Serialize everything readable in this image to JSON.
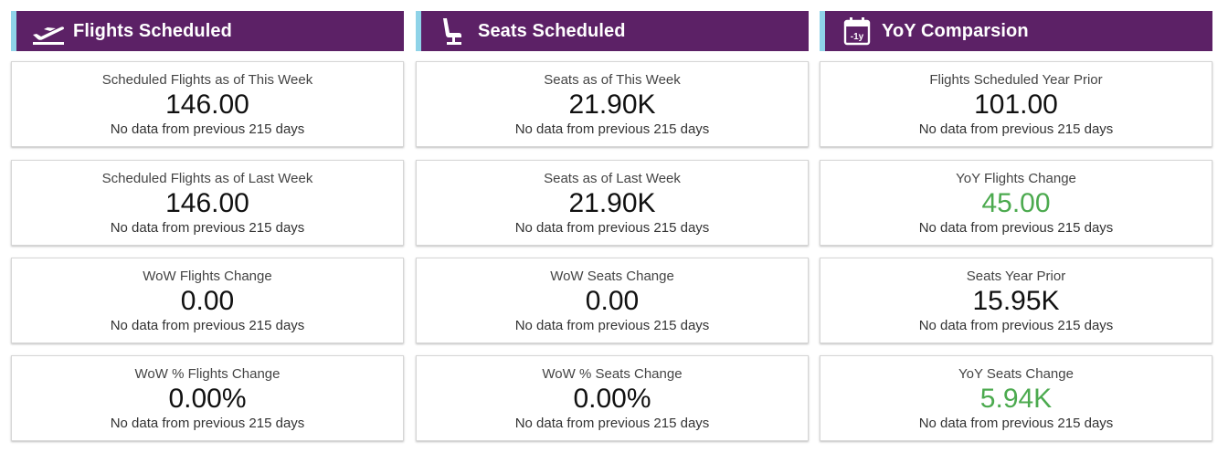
{
  "colors": {
    "header_bg": "#5c2166",
    "header_accent": "#8fd3e8",
    "positive_value": "#4caa4f"
  },
  "columns": [
    {
      "title": "Flights Scheduled",
      "icon": "airplane-takeoff-icon",
      "cards": [
        {
          "label": "Scheduled Flights as of This Week",
          "value": "146.00",
          "note": "No data from previous 215 days",
          "positive": false
        },
        {
          "label": "Scheduled Flights as of Last Week",
          "value": "146.00",
          "note": "No data from previous 215 days",
          "positive": false
        },
        {
          "label": "WoW Flights Change",
          "value": "0.00",
          "note": "No data from previous 215 days",
          "positive": false
        },
        {
          "label": "WoW % Flights Change",
          "value": "0.00%",
          "note": "No data from previous 215 days",
          "positive": false
        }
      ]
    },
    {
      "title": "Seats Scheduled",
      "icon": "seat-icon",
      "cards": [
        {
          "label": "Seats as of This Week",
          "value": "21.90K",
          "note": "No data from previous 215 days",
          "positive": false
        },
        {
          "label": "Seats as of Last Week",
          "value": "21.90K",
          "note": "No data from previous 215 days",
          "positive": false
        },
        {
          "label": "WoW Seats Change",
          "value": "0.00",
          "note": "No data from previous 215 days",
          "positive": false
        },
        {
          "label": "WoW % Seats Change",
          "value": "0.00%",
          "note": "No data from previous 215 days",
          "positive": false
        }
      ]
    },
    {
      "title": "YoY Comparsion",
      "icon": "calendar-minus-year-icon",
      "icon_text": "-1y",
      "cards": [
        {
          "label": "Flights Scheduled Year Prior",
          "value": "101.00",
          "note": "No data from previous 215 days",
          "positive": false
        },
        {
          "label": "YoY Flights Change",
          "value": "45.00",
          "note": "No data from previous 215 days",
          "positive": true
        },
        {
          "label": "Seats Year Prior",
          "value": "15.95K",
          "note": "No data from previous 215 days",
          "positive": false
        },
        {
          "label": "YoY Seats Change",
          "value": "5.94K",
          "note": "No data from previous 215 days",
          "positive": true
        }
      ]
    }
  ]
}
